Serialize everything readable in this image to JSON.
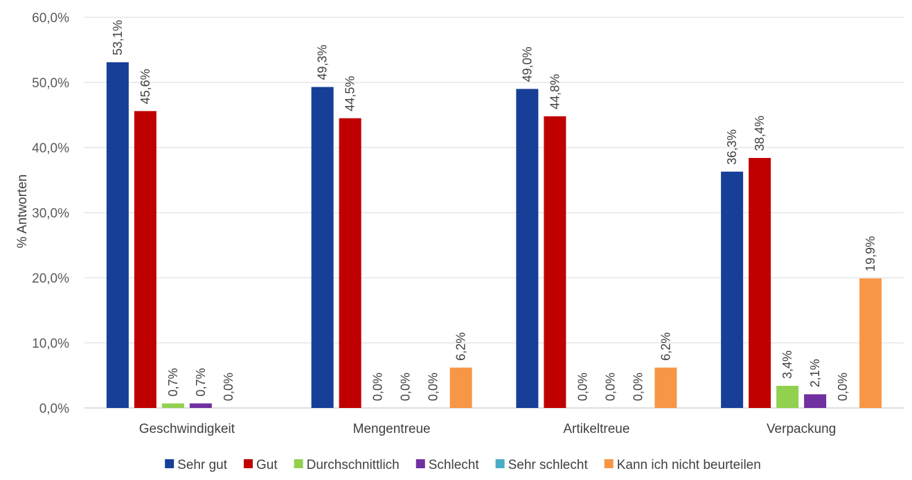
{
  "chart_data": {
    "type": "bar",
    "title": "",
    "xlabel": "",
    "ylabel": "% Antworten",
    "ylim": [
      0,
      60
    ],
    "yticks": [
      "0,0%",
      "10,0%",
      "20,0%",
      "30,0%",
      "40,0%",
      "50,0%",
      "60,0%"
    ],
    "grid": true,
    "legend_position": "bottom",
    "categories": [
      "Geschwindigkeit",
      "Mengentreue",
      "Artikeltreue",
      "Verpackung"
    ],
    "series": [
      {
        "name": "Sehr gut",
        "color": "#173f98",
        "values": [
          53.1,
          49.3,
          49.0,
          36.3
        ],
        "labels": [
          "53,1%",
          "49,3%",
          "49,0%",
          "36,3%"
        ]
      },
      {
        "name": "Gut",
        "color": "#c00000",
        "values": [
          45.6,
          44.5,
          44.8,
          38.4
        ],
        "labels": [
          "45,6%",
          "44,5%",
          "44,8%",
          "38,4%"
        ]
      },
      {
        "name": "Durchschnittlich",
        "color": "#92d050",
        "values": [
          0.7,
          0.0,
          0.0,
          3.4
        ],
        "labels": [
          "0,7%",
          "0,0%",
          "0,0%",
          "3,4%"
        ]
      },
      {
        "name": "Schlecht",
        "color": "#7030a0",
        "values": [
          0.7,
          0.0,
          0.0,
          2.1
        ],
        "labels": [
          "0,7%",
          "0,0%",
          "0,0%",
          "2,1%"
        ]
      },
      {
        "name": "Sehr schlecht",
        "color": "#4bacc6",
        "values": [
          0.0,
          0.0,
          0.0,
          0.0
        ],
        "labels": [
          "0,0%",
          "0,0%",
          "0,0%",
          "0,0%"
        ]
      },
      {
        "name": "Kann ich nicht beurteilen",
        "color": "#f79646",
        "values": [
          0.0,
          6.2,
          6.2,
          19.9
        ],
        "labels": [
          "0,0%",
          "6,2%",
          "6,2%",
          "19,9%"
        ],
        "hidden_labels": [
          true,
          false,
          false,
          false
        ]
      }
    ]
  }
}
